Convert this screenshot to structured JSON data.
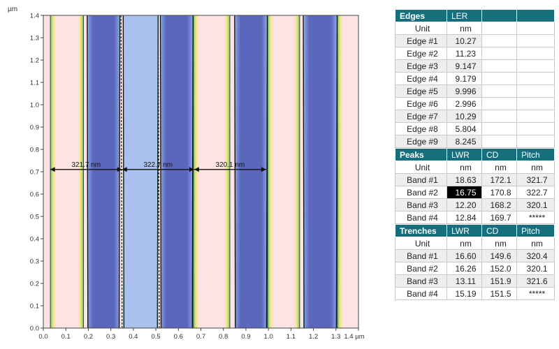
{
  "image": {
    "axis_unit": "µm",
    "x_ticks": [
      "0.0",
      "0.1",
      "0.2",
      "0.3",
      "0.4",
      "0.5",
      "0.6",
      "0.7",
      "0.8",
      "0.9",
      "1.0",
      "1.1",
      "1.2",
      "1.3",
      "1.4 µm"
    ],
    "y_ticks": [
      "0.0",
      "0.1",
      "0.2",
      "0.3",
      "0.4",
      "0.5",
      "0.6",
      "0.7",
      "0.8",
      "0.9",
      "1.0",
      "1.1",
      "1.2",
      "1.3",
      "1.4"
    ],
    "measurements": [
      {
        "label": "321.7 nm",
        "from": 0.03,
        "to": 0.35,
        "y": 0.71
      },
      {
        "label": "322.7 nm",
        "from": 0.35,
        "to": 0.67,
        "y": 0.71
      },
      {
        "label": "320.1 nm",
        "from": 0.67,
        "to": 0.99,
        "y": 0.71
      }
    ],
    "colors": {
      "peak": "#fbe4e2",
      "trench": "#5b67bd",
      "trench_light": "#a9c1ec",
      "edge_yellow": "#f2e25a",
      "edge_green": "#7fd48a",
      "edge_cyan": "#8fe0ee"
    }
  },
  "edges": {
    "title": "Edges",
    "columns": [
      "LER"
    ],
    "unit_label": "Unit",
    "units": [
      "nm"
    ],
    "rows": [
      {
        "label": "Edge #1",
        "values": [
          "10.27"
        ]
      },
      {
        "label": "Edge #2",
        "values": [
          "11.23"
        ]
      },
      {
        "label": "Edge #3",
        "values": [
          "9.147"
        ]
      },
      {
        "label": "Edge #4",
        "values": [
          "9.179"
        ]
      },
      {
        "label": "Edge #5",
        "values": [
          "9.996"
        ]
      },
      {
        "label": "Edge #6",
        "values": [
          "2.996"
        ]
      },
      {
        "label": "Edge #7",
        "values": [
          "10.29"
        ]
      },
      {
        "label": "Edge #8",
        "values": [
          "5.804"
        ]
      },
      {
        "label": "Edge #9",
        "values": [
          "8.245"
        ]
      }
    ]
  },
  "peaks": {
    "title": "Peaks",
    "columns": [
      "LWR",
      "CD",
      "Pitch"
    ],
    "unit_label": "Unit",
    "units": [
      "nm",
      "nm",
      "nm"
    ],
    "rows": [
      {
        "label": "Band #1",
        "values": [
          "18.63",
          "172.1",
          "321.7"
        ]
      },
      {
        "label": "Band #2",
        "values": [
          "16.75",
          "170.8",
          "322.7"
        ]
      },
      {
        "label": "Band #3",
        "values": [
          "12.20",
          "168.2",
          "320.1"
        ]
      },
      {
        "label": "Band #4",
        "values": [
          "12.84",
          "169.7",
          "*****"
        ]
      }
    ]
  },
  "trenches": {
    "title": "Trenches",
    "columns": [
      "LWR",
      "CD",
      "Pitch"
    ],
    "unit_label": "Unit",
    "units": [
      "nm",
      "nm",
      "nm"
    ],
    "rows": [
      {
        "label": "Band #1",
        "values": [
          "16.60",
          "149.6",
          "320.4"
        ]
      },
      {
        "label": "Band #2",
        "values": [
          "16.26",
          "152.0",
          "320.1"
        ]
      },
      {
        "label": "Band #3",
        "values": [
          "13.11",
          "151.9",
          "321.6"
        ]
      },
      {
        "label": "Band #4",
        "values": [
          "15.19",
          "151.5",
          "*****"
        ]
      }
    ]
  }
}
